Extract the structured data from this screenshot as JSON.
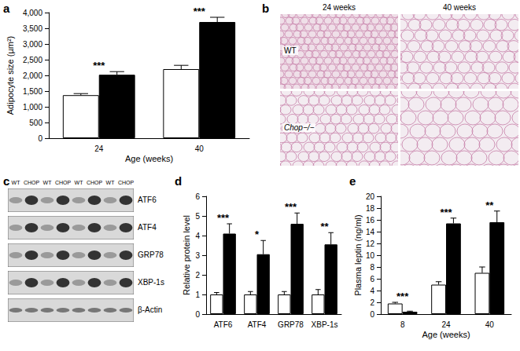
{
  "panel_labels": [
    "a",
    "b",
    "c",
    "d",
    "e"
  ],
  "chart_data": [
    {
      "type": "bar",
      "categories": [
        "24",
        "40"
      ],
      "x_label": "Age (weeks)",
      "y_label": "Adipocyte size (µm²)",
      "ylim": [
        0,
        4000
      ],
      "yticks": [
        0,
        500,
        {
          "value": 1000,
          "label": "1,000"
        },
        {
          "value": 1500,
          "label": "1,500"
        },
        {
          "value": 2000,
          "label": "2,000"
        },
        {
          "value": 2500,
          "label": "2,500"
        },
        {
          "value": 3000,
          "label": "3,000"
        },
        {
          "value": 3500,
          "label": "3,500"
        },
        {
          "value": 4000,
          "label": "4,000"
        }
      ],
      "grid": false,
      "series": [
        {
          "color": "#ffffff",
          "values": [
            1370,
            2200
          ],
          "errors": [
            50,
            120
          ]
        },
        {
          "color": "#000000",
          "values": [
            2020,
            3700
          ],
          "errors": [
            100,
            150
          ]
        }
      ],
      "annotations": [
        "***",
        "***"
      ]
    },
    {
      "type": "bar",
      "categories": [
        "ATF6",
        "ATF4",
        "GRP78",
        "XBP-1s"
      ],
      "y_label": "Relative protein level",
      "ylim": [
        0,
        6
      ],
      "yticks": [
        0,
        1,
        2,
        3,
        4,
        5,
        6
      ],
      "grid": false,
      "series": [
        {
          "color": "#ffffff",
          "values": [
            1,
            1,
            1,
            1
          ],
          "errors": [
            0.1,
            0.15,
            0.15,
            0.25
          ]
        },
        {
          "color": "#000000",
          "values": [
            4.1,
            3.05,
            4.6,
            3.55
          ],
          "errors": [
            0.5,
            0.7,
            0.55,
            0.6
          ]
        }
      ],
      "annotations": [
        "***",
        "*",
        "***",
        "**"
      ]
    },
    {
      "type": "bar",
      "categories": [
        "8",
        "24",
        "40"
      ],
      "x_label": "Age (weeks)",
      "y_label": "Plasma leptin (ng/ml)",
      "ylim": [
        0,
        20
      ],
      "yticks": [
        0,
        2,
        4,
        6,
        8,
        10,
        12,
        14,
        16,
        18,
        20
      ],
      "grid": false,
      "series": [
        {
          "color": "#ffffff",
          "values": [
            1.8,
            5.0,
            7.0
          ],
          "errors": [
            0.2,
            0.5,
            1.0
          ]
        },
        {
          "color": "#000000",
          "values": [
            0.4,
            15.4,
            15.6
          ],
          "errors": [
            0.1,
            0.9,
            1.9
          ]
        }
      ],
      "annotations": [
        "***",
        "***",
        "**"
      ]
    }
  ],
  "micrographs": {
    "columns": [
      "24 weeks",
      "40 weeks"
    ],
    "rows": [
      "WT",
      "Chop−/−"
    ]
  },
  "western_blot": {
    "lanes": [
      "WT",
      "CHOP",
      "WT",
      "CHOP",
      "WT",
      "CHOP",
      "WT",
      "CHOP"
    ],
    "bands": [
      "ATF6",
      "ATF4",
      "GRP78",
      "XBP-1s",
      "β-Actin"
    ]
  }
}
